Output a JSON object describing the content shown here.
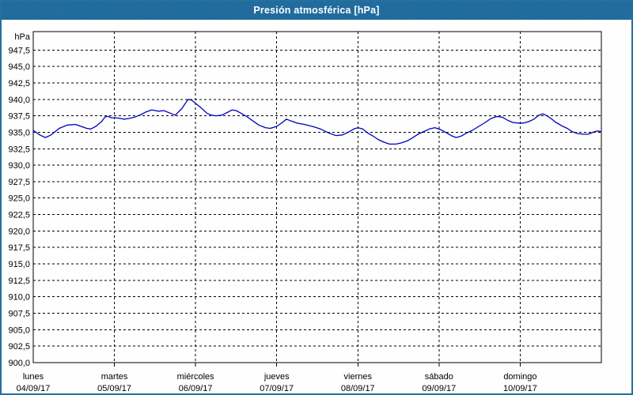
{
  "window": {
    "title": "Presión atmosférica [hPa]"
  },
  "colors": {
    "titlebar": "#1d699c",
    "frame": "#26709f",
    "series_line": "#0000bf",
    "grid": "#000000",
    "background": "#fdfefd"
  },
  "chart_data": {
    "type": "line",
    "title": "Presión atmosférica [hPa]",
    "unit_label": "hPa",
    "ylim": [
      900,
      950.3
    ],
    "xlim_days": [
      0,
      7
    ],
    "grid": "dashed-black",
    "legend": "none",
    "y_ticks": [
      {
        "v": 947.5,
        "label": "947,5"
      },
      {
        "v": 945.0,
        "label": "945,0"
      },
      {
        "v": 942.5,
        "label": "942,5"
      },
      {
        "v": 940.0,
        "label": "940,0"
      },
      {
        "v": 937.5,
        "label": "937,5"
      },
      {
        "v": 935.0,
        "label": "935,0"
      },
      {
        "v": 932.5,
        "label": "932,5"
      },
      {
        "v": 930.0,
        "label": "930,0"
      },
      {
        "v": 927.5,
        "label": "927,5"
      },
      {
        "v": 925.0,
        "label": "925,0"
      },
      {
        "v": 922.5,
        "label": "922,5"
      },
      {
        "v": 920.0,
        "label": "920,0"
      },
      {
        "v": 917.5,
        "label": "917,5"
      },
      {
        "v": 915.0,
        "label": "915,0"
      },
      {
        "v": 912.5,
        "label": "912,5"
      },
      {
        "v": 910.0,
        "label": "910,0"
      },
      {
        "v": 907.5,
        "label": "907,5"
      },
      {
        "v": 905.0,
        "label": "905,0"
      },
      {
        "v": 902.5,
        "label": "902,5"
      },
      {
        "v": 900.0,
        "label": "900,0"
      }
    ],
    "x_days": [
      {
        "name": "lunes",
        "date": "04/09/17"
      },
      {
        "name": "martes",
        "date": "05/09/17"
      },
      {
        "name": "miércoles",
        "date": "06/09/17"
      },
      {
        "name": "jueves",
        "date": "07/09/17"
      },
      {
        "name": "viernes",
        "date": "08/09/17"
      },
      {
        "name": "sábado",
        "date": "09/09/17"
      },
      {
        "name": "domingo",
        "date": "10/09/17"
      }
    ],
    "series": [
      {
        "name": "presión atmosférica",
        "color": "#0000bf",
        "points": [
          [
            0.0,
            935.3
          ],
          [
            0.08,
            934.6
          ],
          [
            0.15,
            934.2
          ],
          [
            0.22,
            934.6
          ],
          [
            0.32,
            935.6
          ],
          [
            0.42,
            936.1
          ],
          [
            0.52,
            936.2
          ],
          [
            0.61,
            935.8
          ],
          [
            0.66,
            935.6
          ],
          [
            0.71,
            935.5
          ],
          [
            0.77,
            935.9
          ],
          [
            0.84,
            936.6
          ],
          [
            0.89,
            937.4
          ],
          [
            0.93,
            937.4
          ],
          [
            0.96,
            937.2
          ],
          [
            1.02,
            937.2
          ],
          [
            1.08,
            937.1
          ],
          [
            1.12,
            937.0
          ],
          [
            1.18,
            937.1
          ],
          [
            1.25,
            937.3
          ],
          [
            1.33,
            937.7
          ],
          [
            1.39,
            938.1
          ],
          [
            1.46,
            938.4
          ],
          [
            1.54,
            938.2
          ],
          [
            1.61,
            938.3
          ],
          [
            1.69,
            937.9
          ],
          [
            1.75,
            937.6
          ],
          [
            1.83,
            938.6
          ],
          [
            1.88,
            939.5
          ],
          [
            1.91,
            940.0
          ],
          [
            1.95,
            939.9
          ],
          [
            2.01,
            939.3
          ],
          [
            2.08,
            938.6
          ],
          [
            2.14,
            937.9
          ],
          [
            2.2,
            937.6
          ],
          [
            2.25,
            937.5
          ],
          [
            2.32,
            937.6
          ],
          [
            2.39,
            938.0
          ],
          [
            2.45,
            938.4
          ],
          [
            2.5,
            938.3
          ],
          [
            2.56,
            937.9
          ],
          [
            2.63,
            937.4
          ],
          [
            2.71,
            936.7
          ],
          [
            2.78,
            936.1
          ],
          [
            2.86,
            935.7
          ],
          [
            2.92,
            935.6
          ],
          [
            3.0,
            935.9
          ],
          [
            3.07,
            936.5
          ],
          [
            3.12,
            937.0
          ],
          [
            3.18,
            936.7
          ],
          [
            3.25,
            936.4
          ],
          [
            3.34,
            936.2
          ],
          [
            3.44,
            935.9
          ],
          [
            3.54,
            935.5
          ],
          [
            3.64,
            934.9
          ],
          [
            3.73,
            934.5
          ],
          [
            3.81,
            934.6
          ],
          [
            3.88,
            935.0
          ],
          [
            3.95,
            935.5
          ],
          [
            4.0,
            935.7
          ],
          [
            4.06,
            935.5
          ],
          [
            4.12,
            934.9
          ],
          [
            4.19,
            934.4
          ],
          [
            4.25,
            933.9
          ],
          [
            4.32,
            933.5
          ],
          [
            4.39,
            933.2
          ],
          [
            4.47,
            933.2
          ],
          [
            4.54,
            933.4
          ],
          [
            4.61,
            933.7
          ],
          [
            4.68,
            934.2
          ],
          [
            4.74,
            934.7
          ],
          [
            4.81,
            935.1
          ],
          [
            4.88,
            935.5
          ],
          [
            4.95,
            935.7
          ],
          [
            5.02,
            935.4
          ],
          [
            5.08,
            935.0
          ],
          [
            5.15,
            934.5
          ],
          [
            5.21,
            934.2
          ],
          [
            5.27,
            934.4
          ],
          [
            5.34,
            934.9
          ],
          [
            5.41,
            935.3
          ],
          [
            5.49,
            935.9
          ],
          [
            5.57,
            936.5
          ],
          [
            5.64,
            937.1
          ],
          [
            5.71,
            937.4
          ],
          [
            5.78,
            937.3
          ],
          [
            5.85,
            936.8
          ],
          [
            5.91,
            936.5
          ],
          [
            5.98,
            936.4
          ],
          [
            6.04,
            936.4
          ],
          [
            6.1,
            936.6
          ],
          [
            6.17,
            937.0
          ],
          [
            6.23,
            937.6
          ],
          [
            6.28,
            937.8
          ],
          [
            6.33,
            937.5
          ],
          [
            6.39,
            937.0
          ],
          [
            6.44,
            936.5
          ],
          [
            6.51,
            936.0
          ],
          [
            6.58,
            935.6
          ],
          [
            6.64,
            935.1
          ],
          [
            6.71,
            934.8
          ],
          [
            6.78,
            934.7
          ],
          [
            6.84,
            934.7
          ],
          [
            6.9,
            935.0
          ],
          [
            6.95,
            935.2
          ],
          [
            7.0,
            935.1
          ]
        ]
      }
    ]
  }
}
